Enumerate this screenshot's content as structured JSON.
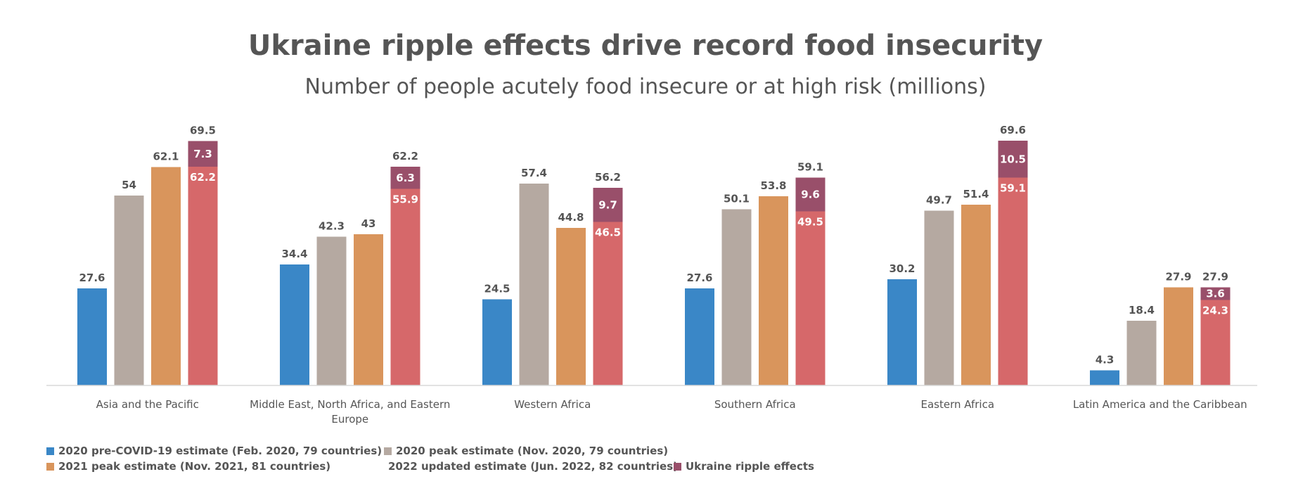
{
  "chart_data": {
    "type": "bar",
    "title": "Ukraine ripple effects drive record food insecurity",
    "subtitle": "Number of people acutely food insecure or at high risk (millions)",
    "xlabel": "",
    "ylabel": "",
    "ylim": [
      0,
      70
    ],
    "grid": false,
    "legend_position": "bottom",
    "categories": [
      "Asia and the Pacific",
      "Middle East, North Africa, and Eastern Europe",
      "Western Africa",
      "Southern Africa",
      "Eastern Africa",
      "Latin America and the Caribbean"
    ],
    "category_label_lines": [
      [
        "Asia and the Pacific"
      ],
      [
        "Middle East, North Africa, and Eastern",
        "Europe"
      ],
      [
        "Western Africa"
      ],
      [
        "Southern Africa"
      ],
      [
        "Eastern Africa"
      ],
      [
        "Latin America and the Caribbean"
      ]
    ],
    "series": [
      {
        "name": "2020 pre-COVID-19 estimate (Feb. 2020, 79 countries)",
        "color": "#3a87c7",
        "values": [
          27.6,
          34.4,
          24.5,
          27.6,
          30.2,
          4.3
        ]
      },
      {
        "name": "2020 peak estimate (Nov. 2020, 79 countries)",
        "color": "#b5a9a1",
        "values": [
          54,
          42.3,
          57.4,
          50.1,
          49.7,
          18.4
        ]
      },
      {
        "name": "2021 peak estimate (Nov. 2021, 81 countries)",
        "color": "#d9955c",
        "values": [
          62.1,
          43,
          44.8,
          53.8,
          51.4,
          27.9
        ]
      },
      {
        "name": "2022 updated estimate (Jun. 2022, 82 countries)",
        "color": "#d6686a",
        "values": [
          62.2,
          55.9,
          46.5,
          49.5,
          59.1,
          24.3
        ],
        "stack": "2022"
      },
      {
        "name": "Ukraine ripple effects",
        "color": "#994f6a",
        "values": [
          7.3,
          6.3,
          9.7,
          9.6,
          10.5,
          3.6
        ],
        "stack": "2022"
      }
    ],
    "value_labels": [
      [
        "27.6",
        "54",
        "62.1",
        "62.2",
        "7.3",
        "69.5"
      ],
      [
        "34.4",
        "42.3",
        "43",
        "55.9",
        "6.3",
        "62.2"
      ],
      [
        "24.5",
        "57.4",
        "44.8",
        "46.5",
        "9.7",
        "56.2"
      ],
      [
        "27.6",
        "50.1",
        "53.8",
        "49.5",
        "9.6",
        "59.1"
      ],
      [
        "30.2",
        "49.7",
        "51.4",
        "59.1",
        "10.5",
        "69.6"
      ],
      [
        "4.3",
        "18.4",
        "27.9",
        "24.3",
        "3.6",
        "27.9"
      ]
    ],
    "stack_totals": [
      69.5,
      62.2,
      56.2,
      59.1,
      69.6,
      27.9
    ]
  }
}
